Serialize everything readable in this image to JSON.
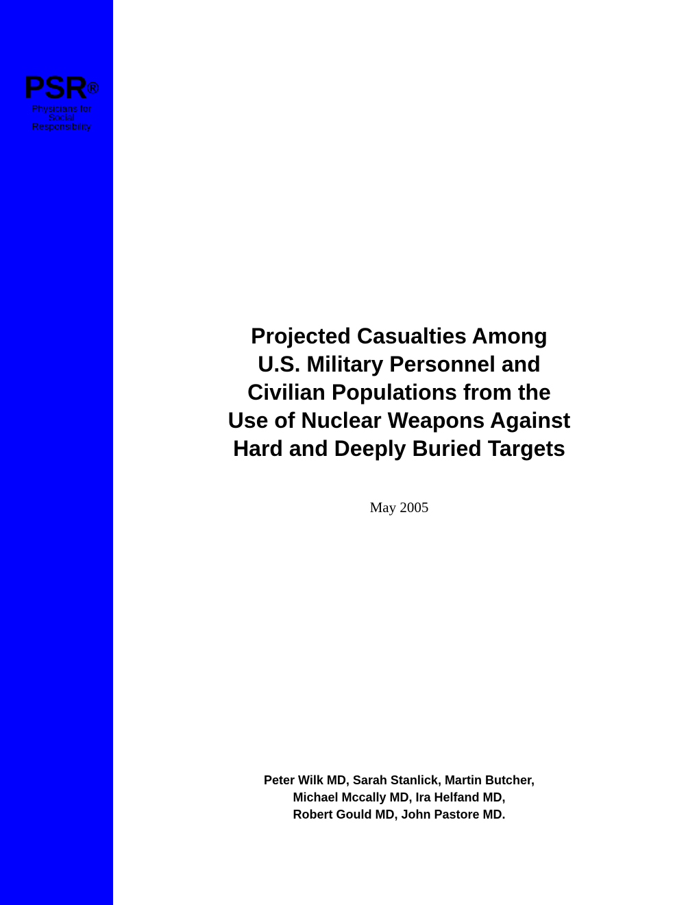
{
  "logo": {
    "acronym": "PSR",
    "registered": "®",
    "subtitle_line1": "Physicians for",
    "subtitle_line2": "Social",
    "subtitle_line3": "Responsibility"
  },
  "title": {
    "line1": "Projected Casualties Among",
    "line2": "U.S. Military Personnel and",
    "line3": "Civilian Populations from the",
    "line4": "Use of Nuclear Weapons Against",
    "line5": "Hard and Deeply Buried Targets"
  },
  "date": "May 2005",
  "authors": {
    "line1": "Peter Wilk MD, Sarah Stanlick, Martin Butcher,",
    "line2": "Michael Mccally MD, Ira Helfand MD,",
    "line3": "Robert Gould MD, John Pastore MD."
  },
  "colors": {
    "sidebar": "#0000ff",
    "background": "#ffffff",
    "text": "#000000"
  }
}
